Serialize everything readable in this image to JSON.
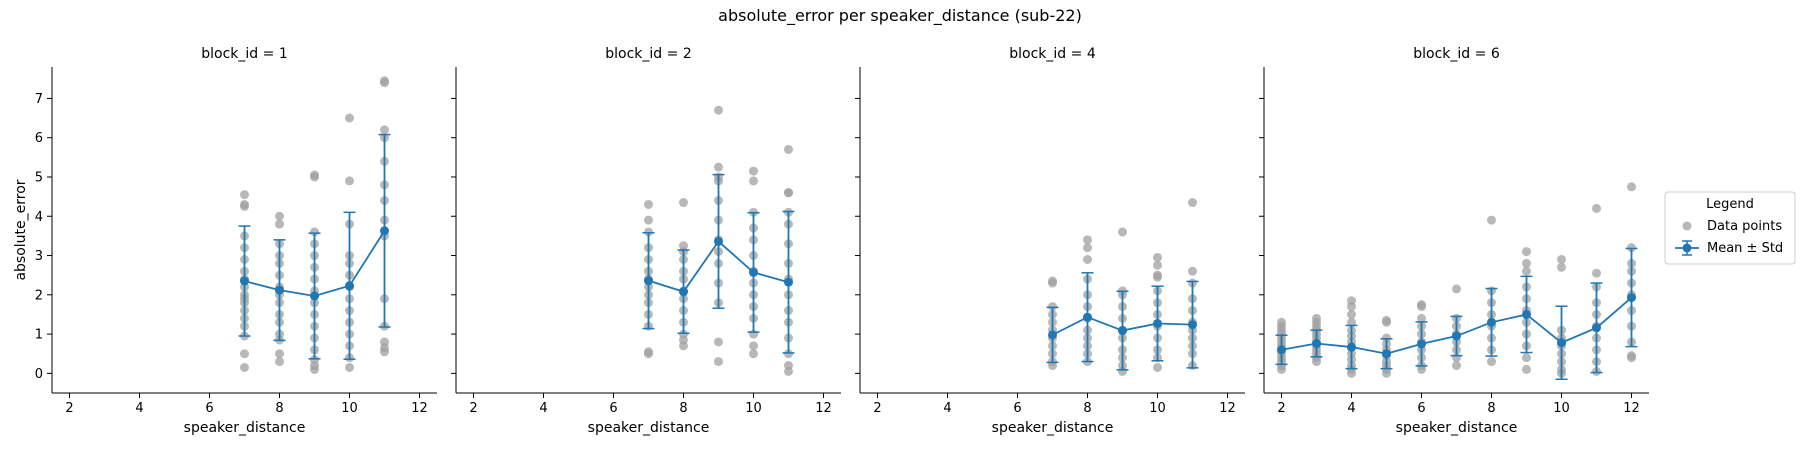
{
  "figure": {
    "title": "absolute_error per speaker_distance (sub-22)"
  },
  "legend": {
    "title": "Legend",
    "items": [
      "Data points",
      "Mean ± Std"
    ],
    "placement": "right"
  },
  "colors": {
    "points": "#a0a0a0",
    "mean": "#1f77b4"
  },
  "chart_data": [
    {
      "type": "scatter",
      "title": "block_id = 1",
      "xlabel": "speaker_distance",
      "ylabel": "absolute_error",
      "xlim": [
        1.5,
        12.5
      ],
      "ylim": [
        -0.5,
        7.8
      ],
      "xticks": [
        "2",
        "4",
        "6",
        "8",
        "10",
        "12"
      ],
      "yticks": [
        "0",
        "1",
        "2",
        "3",
        "4",
        "5",
        "6",
        "7"
      ],
      "points": {
        "7": [
          0.15,
          0.5,
          0.95,
          1.2,
          1.4,
          1.6,
          1.8,
          1.9,
          2.0,
          2.2,
          2.4,
          2.6,
          2.9,
          3.2,
          3.5,
          4.25,
          4.3,
          4.55
        ],
        "8": [
          0.3,
          0.5,
          0.85,
          1.0,
          1.3,
          1.5,
          1.8,
          2.0,
          2.2,
          2.5,
          2.8,
          3.0,
          3.3,
          3.8,
          4.0
        ],
        "9": [
          0.1,
          0.2,
          0.35,
          0.6,
          0.9,
          1.2,
          1.5,
          1.8,
          2.1,
          2.4,
          2.7,
          3.0,
          3.3,
          3.6,
          5.0,
          5.05
        ],
        "10": [
          0.15,
          0.4,
          0.7,
          1.0,
          1.3,
          1.6,
          1.9,
          2.2,
          2.5,
          2.8,
          3.0,
          3.8,
          4.9,
          6.5
        ],
        "11": [
          0.55,
          0.65,
          0.8,
          1.2,
          1.9,
          3.5,
          3.9,
          4.4,
          4.8,
          5.4,
          6.0,
          6.2,
          7.4,
          7.45
        ]
      },
      "x": [
        7,
        8,
        9,
        10,
        11
      ],
      "mean": [
        2.35,
        2.12,
        1.97,
        2.23,
        3.63
      ],
      "std": [
        1.4,
        1.28,
        1.6,
        1.87,
        2.45
      ]
    },
    {
      "type": "scatter",
      "title": "block_id = 2",
      "xlabel": "speaker_distance",
      "ylabel": "",
      "xlim": [
        1.5,
        12.5
      ],
      "ylim": [
        -0.5,
        7.8
      ],
      "xticks": [
        "2",
        "4",
        "6",
        "8",
        "10",
        "12"
      ],
      "yticks": [],
      "points": {
        "7": [
          0.5,
          0.55,
          1.2,
          1.5,
          1.8,
          2.0,
          2.2,
          2.4,
          2.6,
          2.9,
          3.2,
          3.6,
          3.9,
          4.3
        ],
        "8": [
          0.7,
          0.85,
          1.0,
          1.3,
          1.6,
          1.9,
          2.1,
          2.4,
          2.6,
          2.9,
          3.1,
          3.25,
          4.35
        ],
        "9": [
          0.3,
          0.8,
          1.8,
          2.3,
          2.8,
          3.1,
          3.4,
          3.9,
          4.4,
          4.9,
          5.0,
          5.25,
          6.7
        ],
        "10": [
          0.5,
          0.7,
          1.0,
          1.4,
          1.7,
          2.0,
          2.3,
          2.6,
          3.0,
          3.4,
          3.7,
          4.1,
          4.9,
          5.15
        ],
        "11": [
          0.05,
          0.2,
          0.5,
          0.9,
          1.3,
          1.6,
          2.0,
          2.4,
          2.8,
          3.3,
          3.8,
          4.1,
          4.6,
          4.6,
          5.7
        ]
      },
      "x": [
        7,
        8,
        9,
        10,
        11
      ],
      "mean": [
        2.36,
        2.08,
        3.36,
        2.57,
        2.32
      ],
      "std": [
        1.22,
        1.06,
        1.7,
        1.52,
        1.8
      ]
    },
    {
      "type": "scatter",
      "title": "block_id = 4",
      "xlabel": "speaker_distance",
      "ylabel": "",
      "xlim": [
        1.5,
        12.5
      ],
      "ylim": [
        -0.5,
        7.8
      ],
      "xticks": [
        "2",
        "4",
        "6",
        "8",
        "10",
        "12"
      ],
      "yticks": [],
      "points": {
        "7": [
          0.2,
          0.3,
          0.5,
          0.7,
          0.9,
          1.1,
          1.3,
          1.5,
          1.7,
          2.3,
          2.35
        ],
        "8": [
          0.3,
          0.5,
          0.7,
          0.9,
          1.1,
          1.4,
          1.7,
          2.0,
          2.4,
          2.9,
          3.2,
          3.4
        ],
        "9": [
          0.05,
          0.2,
          0.4,
          0.6,
          0.9,
          1.1,
          1.4,
          1.7,
          2.0,
          2.1,
          3.6
        ],
        "10": [
          0.15,
          0.4,
          0.6,
          0.9,
          1.2,
          1.5,
          1.8,
          2.1,
          2.45,
          2.5,
          2.75,
          2.95
        ],
        "11": [
          0.2,
          0.5,
          0.7,
          0.9,
          1.1,
          1.3,
          1.6,
          1.9,
          2.3,
          2.6,
          4.35
        ]
      },
      "x": [
        7,
        8,
        9,
        10,
        11
      ],
      "mean": [
        0.98,
        1.43,
        1.09,
        1.27,
        1.24
      ],
      "std": [
        0.7,
        1.13,
        1.0,
        0.95,
        1.1
      ]
    },
    {
      "type": "scatter",
      "title": "block_id = 6",
      "xlabel": "speaker_distance",
      "ylabel": "",
      "xlim": [
        1.5,
        12.5
      ],
      "ylim": [
        -0.5,
        7.8
      ],
      "xticks": [
        "2",
        "4",
        "6",
        "8",
        "10",
        "12"
      ],
      "yticks": [],
      "points": {
        "2": [
          0.1,
          0.2,
          0.3,
          0.4,
          0.5,
          0.6,
          0.7,
          0.8,
          0.9,
          1.0,
          1.1,
          1.2,
          1.3
        ],
        "3": [
          0.3,
          0.4,
          0.5,
          0.6,
          0.7,
          0.8,
          0.9,
          1.0,
          1.1,
          1.2,
          1.3,
          1.4
        ],
        "4": [
          0.0,
          0.1,
          0.2,
          0.35,
          0.5,
          0.65,
          0.8,
          0.95,
          1.1,
          1.3,
          1.5,
          1.7,
          1.85
        ],
        "5": [
          0.0,
          0.1,
          0.2,
          0.3,
          0.45,
          0.6,
          0.75,
          0.9,
          1.3,
          1.35
        ],
        "6": [
          0.1,
          0.2,
          0.4,
          0.6,
          0.8,
          1.0,
          1.2,
          1.4,
          1.7,
          1.75
        ],
        "7": [
          0.2,
          0.4,
          0.6,
          0.8,
          1.0,
          1.2,
          1.4,
          2.15
        ],
        "8": [
          0.3,
          0.6,
          0.9,
          1.2,
          1.5,
          1.8,
          2.1,
          3.9
        ],
        "9": [
          0.1,
          0.4,
          0.7,
          1.0,
          1.3,
          1.6,
          1.9,
          2.2,
          2.6,
          2.8,
          3.1
        ],
        "10": [
          0.0,
          0.1,
          0.3,
          0.5,
          0.7,
          0.9,
          1.1,
          2.7,
          2.9
        ],
        "11": [
          0.05,
          0.3,
          0.6,
          0.9,
          1.2,
          1.5,
          1.8,
          2.2,
          2.55,
          4.2
        ],
        "12": [
          0.4,
          0.45,
          0.8,
          1.2,
          1.6,
          2.0,
          2.3,
          2.6,
          2.8,
          3.2,
          4.75
        ]
      },
      "x": [
        2,
        3,
        4,
        5,
        6,
        7,
        8,
        9,
        10,
        11,
        12
      ],
      "mean": [
        0.6,
        0.76,
        0.67,
        0.5,
        0.75,
        0.95,
        1.3,
        1.5,
        0.78,
        1.16,
        1.93
      ],
      "std": [
        0.37,
        0.34,
        0.55,
        0.38,
        0.56,
        0.5,
        0.86,
        0.97,
        0.93,
        1.14,
        1.25
      ]
    }
  ]
}
